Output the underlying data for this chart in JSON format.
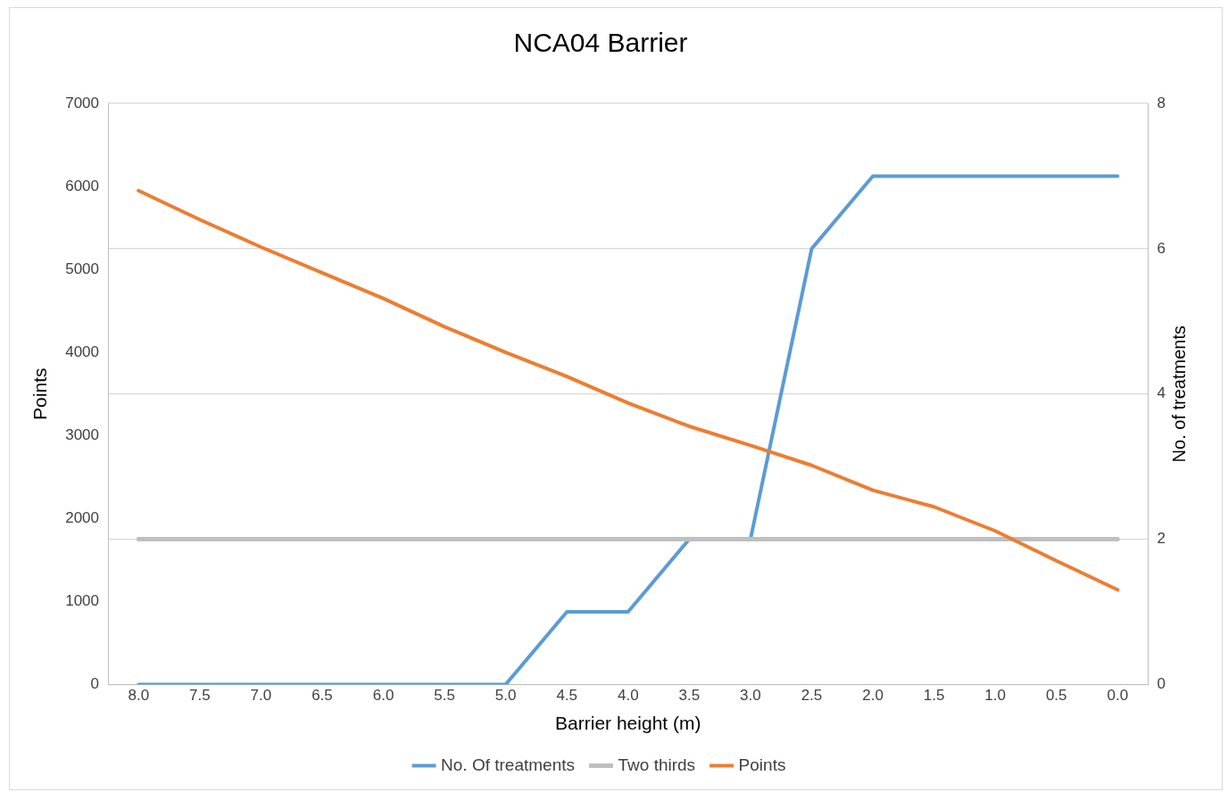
{
  "chart_data": {
    "type": "line",
    "title": "NCA04 Barrier",
    "xlabel": "Barrier height (m)",
    "ylabel": "Points",
    "y2label": "No. of treatments",
    "categories": [
      "8.0",
      "7.5",
      "7.0",
      "6.5",
      "6.0",
      "5.5",
      "5.0",
      "4.5",
      "4.0",
      "3.5",
      "3.0",
      "2.5",
      "2.0",
      "1.5",
      "1.0",
      "0.5",
      "0.0"
    ],
    "series": [
      {
        "name": "No. Of treatments",
        "color": "#5b9bd5",
        "axis": "y2",
        "values": [
          0,
          0,
          0,
          0,
          0,
          0,
          0,
          1,
          1,
          2,
          2,
          6,
          7,
          7,
          7,
          7,
          7
        ]
      },
      {
        "name": "Two thirds",
        "color": "#bfbfbf",
        "axis": "y2",
        "values": [
          2,
          2,
          2,
          2,
          2,
          2,
          2,
          2,
          2,
          2,
          2,
          2,
          2,
          2,
          2,
          2,
          2
        ]
      },
      {
        "name": "Points",
        "color": "#ed7d31",
        "values": [
          5950,
          5600,
          5270,
          4960,
          4650,
          4310,
          4000,
          3710,
          3390,
          3110,
          2880,
          2640,
          2340,
          2140,
          1850,
          1490,
          1140
        ]
      }
    ],
    "ylim": [
      0,
      7000
    ],
    "yticks": [
      0,
      1000,
      2000,
      3000,
      4000,
      5000,
      6000,
      7000
    ],
    "y2lim": [
      0,
      8
    ],
    "y2ticks": [
      0,
      2,
      4,
      6,
      8
    ],
    "grid": "y",
    "legend": "bottom",
    "marker": "none",
    "line_style": "solid"
  }
}
